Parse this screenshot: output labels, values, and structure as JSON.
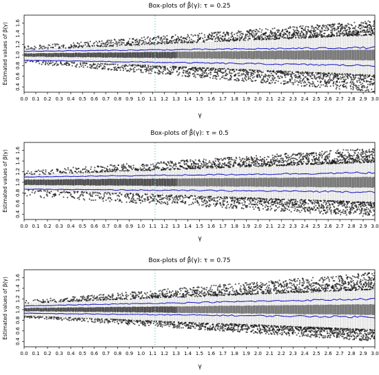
{
  "chart_data": [
    {
      "type": "box",
      "title": "Box-plots of β̂(γ): τ = 0.25",
      "xlabel": "γ",
      "ylabel": "Estimated values of β(γ)",
      "x_ticks": [
        "0.0",
        "0.1",
        "0.2",
        "0.3",
        "0.4",
        "0.5",
        "0.6",
        "0.7",
        "0.8",
        "0.9",
        "1.0",
        "1.1",
        "1.2",
        "1.3",
        "1.4",
        "1.5",
        "1.6",
        "1.7",
        "1.8",
        "1.9",
        "2.0",
        "2.1",
        "2.2",
        "2.3",
        "2.4",
        "2.5",
        "2.6",
        "2.7",
        "2.8",
        "2.9",
        "3.0"
      ],
      "y_ticks": [
        "0.4",
        "0.6",
        "0.8",
        "1.0",
        "1.2",
        "1.4",
        "1.6"
      ],
      "xlim": [
        0,
        3
      ],
      "ylim": [
        0.3,
        1.75
      ],
      "reference_line_x": 1.12,
      "median_center": 1.0,
      "iqr_half_width": {
        "at_0": 0.03,
        "at_3": 0.1
      },
      "whisker_half_width": {
        "at_0": 0.1,
        "at_3": 0.38
      },
      "upper_blue_line": {
        "at_0": 1.07,
        "at_3": 1.14
      },
      "lower_blue_line": {
        "at_0": 0.9,
        "at_3": 0.8
      },
      "outlier_range": {
        "at_0": [
          0.85,
          1.17
        ],
        "at_3": [
          0.3,
          1.65
        ]
      }
    },
    {
      "type": "box",
      "title": "Box-plots of β̂(γ): τ = 0.5",
      "xlabel": "γ",
      "ylabel": "Estimated values of β(γ)",
      "x_ticks": [
        "0.0",
        "0.1",
        "0.2",
        "0.3",
        "0.4",
        "0.5",
        "0.6",
        "0.7",
        "0.8",
        "0.9",
        "1.0",
        "1.1",
        "1.2",
        "1.3",
        "1.4",
        "1.5",
        "1.6",
        "1.7",
        "1.8",
        "1.9",
        "2.0",
        "2.1",
        "2.2",
        "2.3",
        "2.4",
        "2.5",
        "2.6",
        "2.7",
        "2.8",
        "2.9",
        "3.0"
      ],
      "y_ticks": [
        "0.4",
        "0.6",
        "0.8",
        "1.0",
        "1.2",
        "1.4",
        "1.6"
      ],
      "xlim": [
        0,
        3
      ],
      "ylim": [
        0.3,
        1.75
      ],
      "reference_line_x": 1.12,
      "median_center": 1.0,
      "iqr_half_width": {
        "at_0": 0.05,
        "at_3": 0.1
      },
      "whisker_half_width": {
        "at_0": 0.14,
        "at_3": 0.38
      },
      "upper_blue_line": {
        "at_0": 1.1,
        "at_3": 1.18
      },
      "lower_blue_line": {
        "at_0": 0.87,
        "at_3": 0.82
      },
      "outlier_range": {
        "at_0": [
          0.73,
          1.22
        ],
        "at_3": [
          0.35,
          1.65
        ]
      }
    },
    {
      "type": "box",
      "title": "Box-plots of β̂(γ): τ = 0.75",
      "xlabel": "γ",
      "ylabel": "Estimated values of β(γ)",
      "x_ticks": [
        "0.0",
        "0.1",
        "0.2",
        "0.3",
        "0.4",
        "0.5",
        "0.6",
        "0.7",
        "0.8",
        "0.9",
        "1.0",
        "1.1",
        "1.2",
        "1.3",
        "1.4",
        "1.5",
        "1.6",
        "1.7",
        "1.8",
        "1.9",
        "2.0",
        "2.1",
        "2.2",
        "2.3",
        "2.4",
        "2.5",
        "2.6",
        "2.7",
        "2.8",
        "2.9",
        "3.0"
      ],
      "y_ticks": [
        "0.4",
        "0.6",
        "0.8",
        "1.0",
        "1.2",
        "1.4",
        "1.6"
      ],
      "xlim": [
        0,
        3
      ],
      "ylim": [
        0.3,
        1.75
      ],
      "reference_line_x": 1.12,
      "median_center": 1.0,
      "iqr_half_width": {
        "at_0": 0.03,
        "at_3": 0.1
      },
      "whisker_half_width": {
        "at_0": 0.12,
        "at_3": 0.38
      },
      "upper_blue_line": {
        "at_0": 1.07,
        "at_3": 1.2
      },
      "lower_blue_line": {
        "at_0": 0.93,
        "at_3": 0.86
      },
      "outlier_range": {
        "at_0": [
          0.85,
          1.17
        ],
        "at_3": [
          0.4,
          1.7
        ]
      }
    }
  ],
  "colors": {
    "box_fill": "#262626",
    "box_fill_right": "#5a5a5a",
    "whisker": "#444444",
    "outlier": "#1a1a1a",
    "blue_line": "#2020c8",
    "reference_line": "#66c8d2",
    "axis": "#000000"
  }
}
